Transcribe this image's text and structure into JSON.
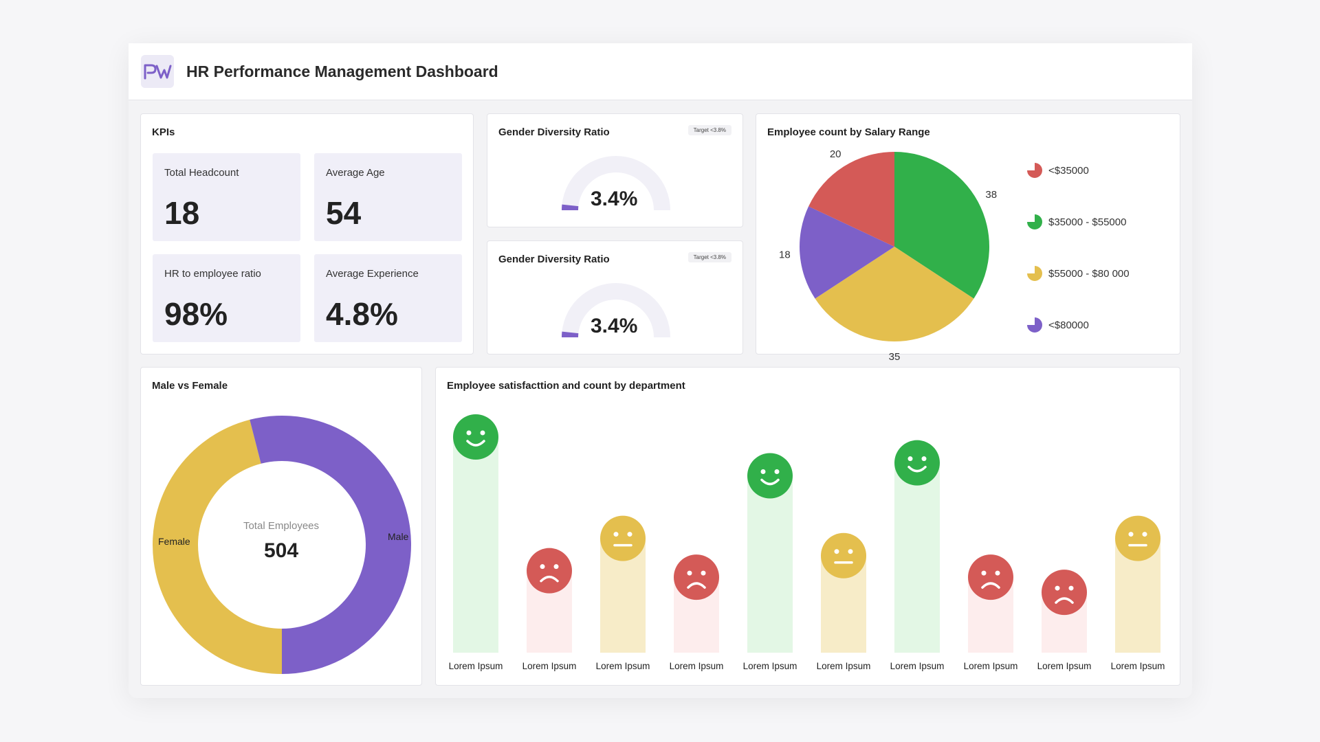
{
  "header": {
    "title": "HR Performance Management Dashboard"
  },
  "colors": {
    "red": "#d45a57",
    "green": "#31b04a",
    "yellow": "#e4bf4e",
    "purple": "#7d60c8",
    "light_green": "#e3f7e5",
    "light_red": "#fdeded",
    "light_yellow": "#f7ecc8"
  },
  "kpis": {
    "title": "KPIs",
    "items": [
      {
        "label": "Total Headcount",
        "value": "18"
      },
      {
        "label": "Average Age",
        "value": "54"
      },
      {
        "label": "HR to employee ratio",
        "value": "98%"
      },
      {
        "label": "Average Experience",
        "value": "4.8%"
      }
    ]
  },
  "gauges": [
    {
      "title": "Gender Diversity Ratio",
      "target": "Target <3.8%",
      "value_text": "3.4%",
      "value": 3.4
    },
    {
      "title": "Gender Diversity Ratio",
      "target": "Target <3.8%",
      "value_text": "3.4%",
      "value": 3.4
    }
  ],
  "salary": {
    "title": "Employee count by Salary Range",
    "legend": [
      "<$35000",
      "$35000 - $55000",
      "$55000 - $80  000",
      "<$80000"
    ]
  },
  "gender": {
    "title": "Male vs Female",
    "center_label": "Total Employees",
    "center_value": "504",
    "female_label": "Female",
    "male_label": "Male"
  },
  "satisfaction": {
    "title": "Employee satisfacttion and count by department"
  },
  "chart_data": [
    {
      "type": "pie",
      "labels": [
        "<$35000",
        "$35000 - $55000",
        "$55000 - $80  000",
        "<$80000"
      ],
      "values": [
        20,
        38,
        35,
        18
      ],
      "colors": [
        "#d45a57",
        "#31b04a",
        "#e4bf4e",
        "#7d60c8"
      ],
      "title": "Employee count by Salary Range",
      "legend": "right"
    },
    {
      "type": "pie",
      "labels": [
        "Female",
        "Male"
      ],
      "values": [
        46,
        54
      ],
      "colors": [
        "#e4bf4e",
        "#7d60c8"
      ],
      "title": "Male vs Female",
      "legend": "none"
    },
    {
      "type": "bar",
      "title": "Employee satisfacttion and count by department",
      "categories": [
        "Lorem Ipsum",
        "Lorem Ipsum",
        "Lorem Ipsum",
        "Lorem Ipsum",
        "Lorem Ipsum",
        "Lorem Ipsum",
        "Lorem Ipsum",
        "Lorem Ipsum",
        "Lorem Ipsum",
        "Lorem Ipsum"
      ],
      "values": [
        100,
        38,
        53,
        35,
        82,
        45,
        88,
        35,
        28,
        53
      ],
      "sentiment": [
        "happy",
        "sad",
        "neutral",
        "sad",
        "happy",
        "neutral",
        "happy",
        "sad",
        "sad",
        "neutral"
      ],
      "ylim": [
        0,
        100
      ],
      "grid": false,
      "legend": "none"
    }
  ]
}
